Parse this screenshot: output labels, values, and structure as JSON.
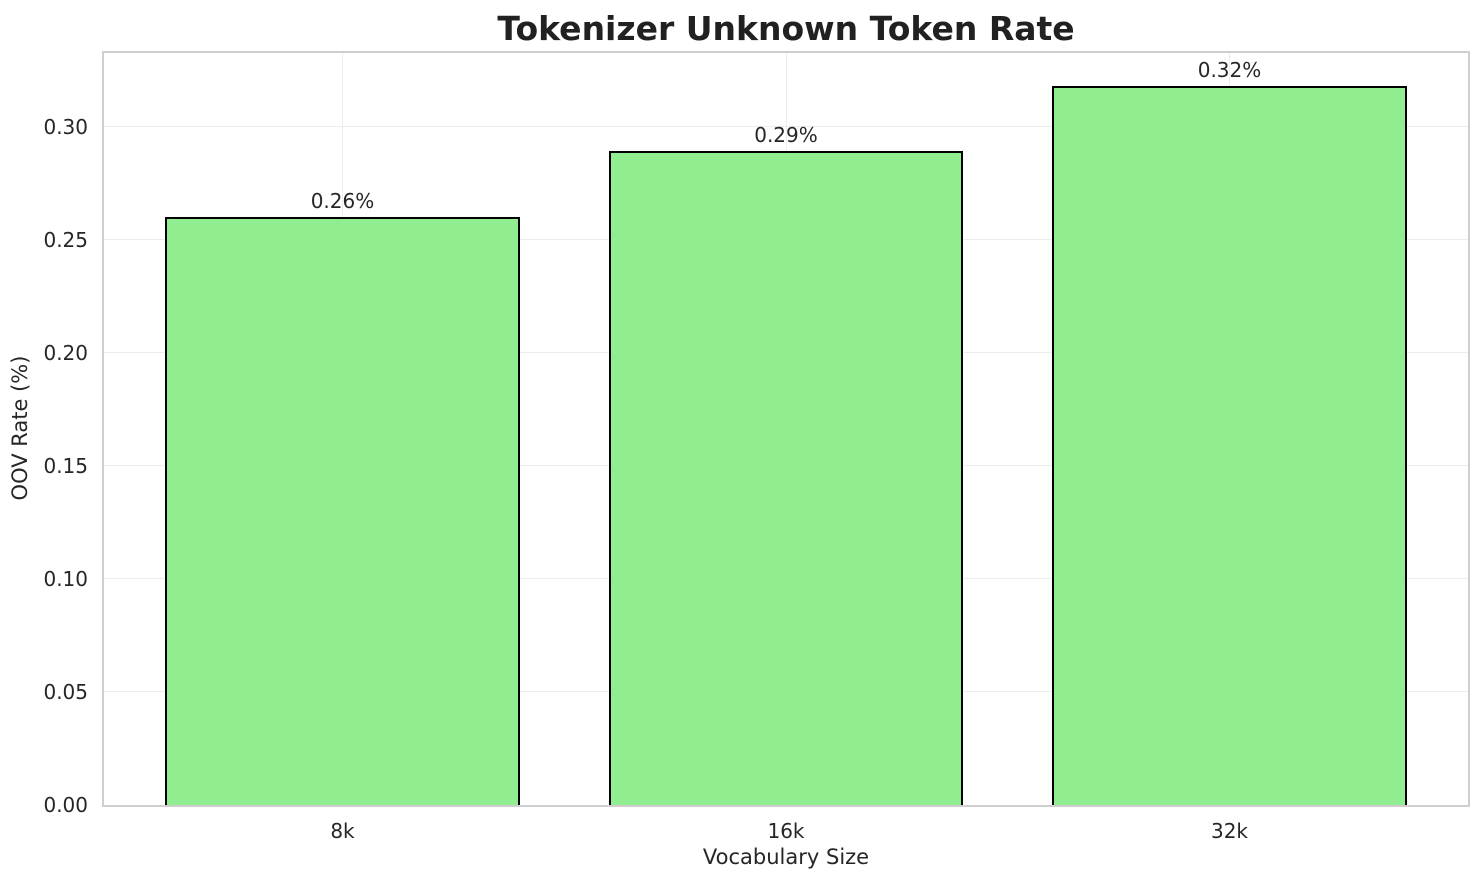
{
  "chart_data": {
    "type": "bar",
    "title": "Tokenizer Unknown Token Rate",
    "xlabel": "Vocabulary Size",
    "ylabel": "OOV Rate (%)",
    "categories": [
      "8k",
      "16k",
      "32k"
    ],
    "values": [
      0.26,
      0.289,
      0.318
    ],
    "bar_labels": [
      "0.26%",
      "0.29%",
      "0.32%"
    ],
    "yticks": [
      0.0,
      0.05,
      0.1,
      0.15,
      0.2,
      0.25,
      0.3
    ],
    "ytick_labels": [
      "0.00",
      "0.05",
      "0.10",
      "0.15",
      "0.20",
      "0.25",
      "0.30"
    ],
    "ylim": [
      0,
      0.333
    ],
    "xlim": [
      -0.54,
      2.54
    ],
    "bar_width_units": 0.8,
    "grid": true,
    "legend_position": "none",
    "colors": {
      "bar_fill": "#90EE90",
      "bar_edge": "#000000",
      "grid": "#ededed",
      "spine": "#cfcfcf",
      "text": "#262626",
      "title": "#212121",
      "background": "#ffffff"
    }
  }
}
